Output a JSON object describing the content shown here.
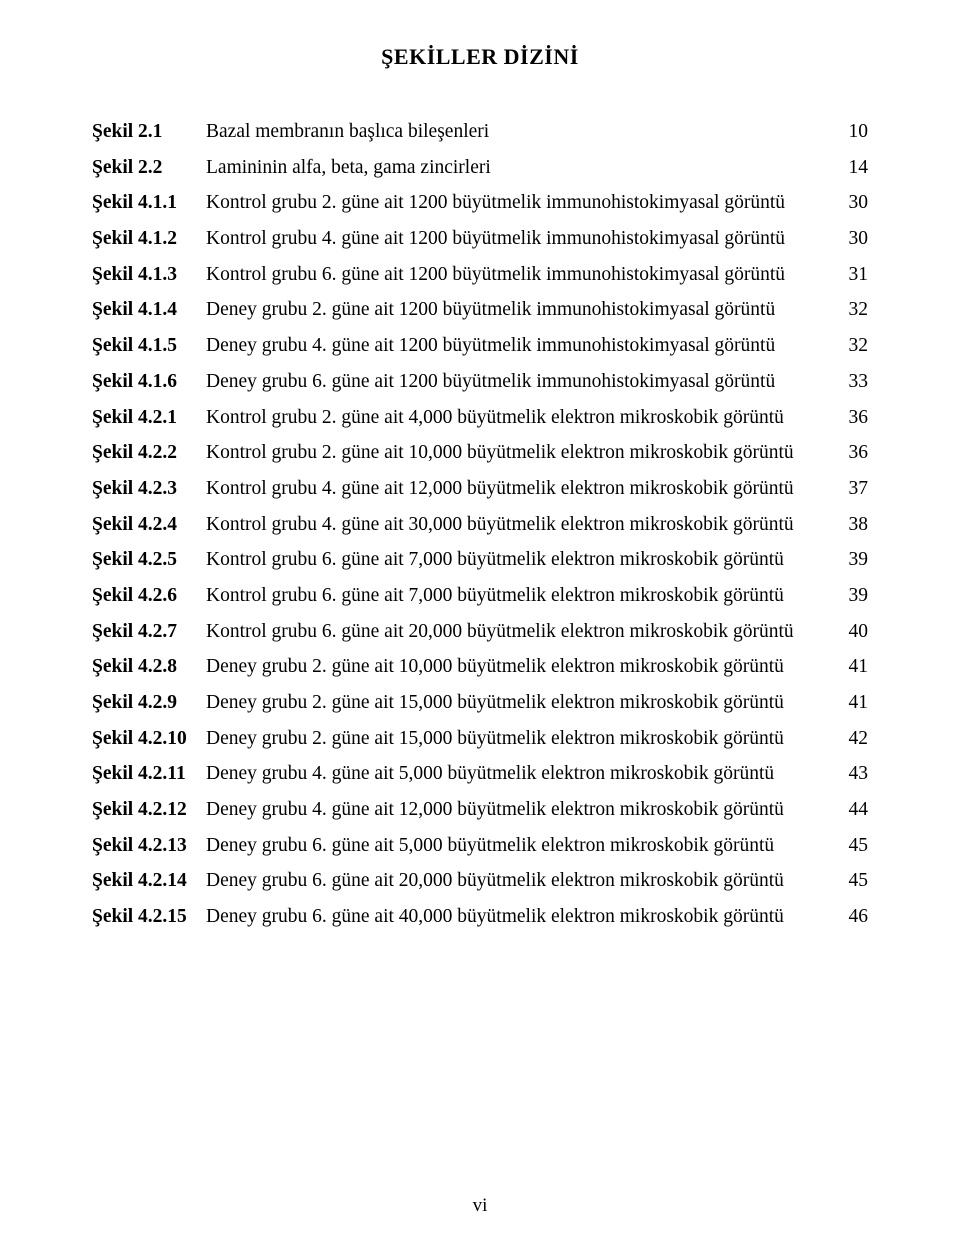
{
  "title": "ŞEKİLLER DİZİNİ",
  "footer_page": "vi",
  "font_family": "Times New Roman",
  "colors": {
    "text": "#000000",
    "background": "#ffffff"
  },
  "entries": [
    {
      "label": "Şekil 2.1",
      "desc": "Bazal membranın başlıca bileşenleri",
      "page": "10"
    },
    {
      "label": "Şekil 2.2",
      "desc": "Lamininin alfa, beta, gama zincirleri",
      "page": "14"
    },
    {
      "label": "Şekil 4.1.1",
      "desc": "Kontrol grubu 2. güne ait 1200 büyütmelik immunohistokimyasal görüntü",
      "page": "30"
    },
    {
      "label": "Şekil 4.1.2",
      "desc": "Kontrol grubu 4. güne ait 1200 büyütmelik immunohistokimyasal görüntü",
      "page": "30"
    },
    {
      "label": "Şekil 4.1.3",
      "desc": "Kontrol grubu 6. güne ait 1200 büyütmelik immunohistokimyasal görüntü",
      "page": "31"
    },
    {
      "label": "Şekil 4.1.4",
      "desc": "Deney grubu 2. güne ait 1200 büyütmelik immunohistokimyasal görüntü",
      "page": "32"
    },
    {
      "label": "Şekil 4.1.5",
      "desc": "Deney grubu 4. güne ait 1200 büyütmelik immunohistokimyasal görüntü",
      "page": "32"
    },
    {
      "label": "Şekil 4.1.6",
      "desc": "Deney grubu 6. güne ait 1200 büyütmelik immunohistokimyasal görüntü",
      "page": "33"
    },
    {
      "label": "Şekil 4.2.1",
      "desc": "Kontrol grubu 2. güne ait 4,000 büyütmelik elektron mikroskobik görüntü",
      "page": "36"
    },
    {
      "label": "Şekil 4.2.2",
      "desc": "Kontrol grubu 2. güne ait 10,000 büyütmelik elektron mikroskobik görüntü",
      "page": "36"
    },
    {
      "label": "Şekil 4.2.3",
      "desc": "Kontrol grubu 4. güne ait 12,000 büyütmelik elektron mikroskobik görüntü",
      "page": "37"
    },
    {
      "label": "Şekil 4.2.4",
      "desc": "Kontrol grubu 4. güne ait 30,000 büyütmelik elektron mikroskobik görüntü",
      "page": "38"
    },
    {
      "label": "Şekil 4.2.5",
      "desc": "Kontrol grubu 6. güne ait 7,000 büyütmelik elektron mikroskobik görüntü",
      "page": "39"
    },
    {
      "label": "Şekil 4.2.6",
      "desc": "Kontrol grubu 6. güne ait 7,000 büyütmelik elektron mikroskobik görüntü",
      "page": "39"
    },
    {
      "label": "Şekil 4.2.7",
      "desc": "Kontrol grubu 6. güne ait 20,000 büyütmelik elektron mikroskobik görüntü",
      "page": "40"
    },
    {
      "label": "Şekil 4.2.8",
      "desc": "Deney grubu 2. güne ait 10,000 büyütmelik elektron mikroskobik görüntü",
      "page": "41"
    },
    {
      "label": "Şekil 4.2.9",
      "desc": "Deney grubu 2. güne ait 15,000 büyütmelik elektron mikroskobik görüntü",
      "page": "41"
    },
    {
      "label": "Şekil 4.2.10",
      "desc": "Deney grubu 2. güne ait 15,000 büyütmelik elektron mikroskobik görüntü",
      "page": "42"
    },
    {
      "label": "Şekil 4.2.11",
      "desc": "Deney grubu 4. güne ait 5,000 büyütmelik elektron mikroskobik görüntü",
      "page": "43"
    },
    {
      "label": "Şekil 4.2.12",
      "desc": "Deney grubu 4. güne ait 12,000 büyütmelik elektron mikroskobik görüntü",
      "page": "44"
    },
    {
      "label": "Şekil 4.2.13",
      "desc": "Deney grubu 6. güne ait 5,000 büyütmelik elektron mikroskobik görüntü",
      "page": "45"
    },
    {
      "label": "Şekil 4.2.14",
      "desc": "Deney grubu 6. güne ait 20,000 büyütmelik elektron mikroskobik görüntü",
      "page": "45"
    },
    {
      "label": "Şekil 4.2.15",
      "desc": "Deney grubu 6. güne ait 40,000 büyütmelik elektron mikroskobik görüntü",
      "page": "46"
    }
  ]
}
